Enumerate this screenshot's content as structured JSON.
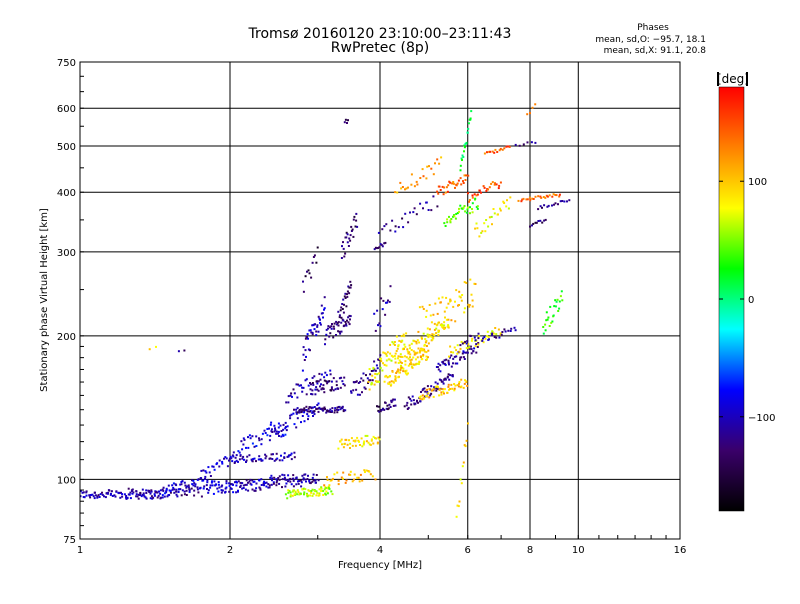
{
  "chart_data": {
    "type": "scatter",
    "title_line1": "Tromsø 20160120 23:10:00–23:11:43",
    "title_line2": "RwPretec (8p)",
    "xlabel": "Frequency [MHz]",
    "ylabel": "Stationary phase Virtual Height [km]",
    "x_scale": "log",
    "y_scale": "log",
    "xlim": [
      1,
      16
    ],
    "ylim": [
      75,
      750
    ],
    "x_ticks": [
      1,
      2,
      4,
      6,
      8,
      10,
      16
    ],
    "x_tick_labels": [
      "1",
      "2",
      "4",
      "6",
      "8",
      "10",
      "16"
    ],
    "y_ticks": [
      75,
      100,
      200,
      300,
      400,
      500,
      600,
      750
    ],
    "y_tick_labels": [
      "75",
      "100",
      "200",
      "300",
      "400",
      "500",
      "600",
      "750"
    ],
    "grid": true,
    "phases_info": {
      "heading": "Phases",
      "line1": "mean, sd,O: −95.7, 18.1",
      "line2": "mean, sd,X:  91.1, 20.8"
    },
    "colorbar": {
      "label": "[deg]",
      "range": [
        -180,
        180
      ],
      "ticks": [
        100,
        0,
        -100
      ],
      "tick_labels": [
        "100",
        "0",
        "−100"
      ],
      "colors": [
        "#000000",
        "#3a006a",
        "#0000ff",
        "#00ffff",
        "#00ff00",
        "#ffff00",
        "#ff8000",
        "#ff0000"
      ]
    },
    "series": [
      {
        "f": [
          1.0,
          1.45
        ],
        "h": [
          93,
          93
        ],
        "phase": -105,
        "count": 90,
        "jh": 2
      },
      {
        "f": [
          1.25,
          1.75
        ],
        "h": [
          94,
          94
        ],
        "phase": -115,
        "count": 40,
        "jh": 2
      },
      {
        "f": [
          1.45,
          1.8
        ],
        "h": [
          94,
          99
        ],
        "phase": -95,
        "count": 60,
        "jh": 3
      },
      {
        "f": [
          1.8,
          2.4
        ],
        "h": [
          96,
          98
        ],
        "phase": -100,
        "count": 90,
        "jh": 3
      },
      {
        "f": [
          2.4,
          3.0
        ],
        "h": [
          99,
          100
        ],
        "phase": -110,
        "count": 70,
        "jh": 3
      },
      {
        "f": [
          2.6,
          3.2
        ],
        "h": [
          93,
          95
        ],
        "phase": 65,
        "count": 70,
        "jh": 2
      },
      {
        "f": [
          3.1,
          3.9
        ],
        "h": [
          100,
          102
        ],
        "phase": 105,
        "count": 35,
        "jh": 3
      },
      {
        "f": [
          1.75,
          2.1
        ],
        "h": [
          102,
          113
        ],
        "phase": -95,
        "count": 30,
        "jh": 3
      },
      {
        "f": [
          2.0,
          2.7
        ],
        "h": [
          110,
          112
        ],
        "phase": -105,
        "count": 55,
        "jh": 2
      },
      {
        "f": [
          2.1,
          2.6
        ],
        "h": [
          118,
          128
        ],
        "phase": -90,
        "count": 40,
        "jh": 4
      },
      {
        "f": [
          2.4,
          3.0
        ],
        "h": [
          126,
          140
        ],
        "phase": -95,
        "count": 40,
        "jh": 5
      },
      {
        "f": [
          2.7,
          3.4
        ],
        "h": [
          140,
          140
        ],
        "phase": -120,
        "count": 70,
        "jh": 2
      },
      {
        "f": [
          2.6,
          3.2
        ],
        "h": [
          150,
          165
        ],
        "phase": -110,
        "count": 40,
        "jh": 6
      },
      {
        "f": [
          2.9,
          3.4
        ],
        "h": [
          155,
          160
        ],
        "phase": -125,
        "count": 40,
        "jh": 5
      },
      {
        "f": [
          2.8,
          3.1
        ],
        "h": [
          180,
          230
        ],
        "phase": -105,
        "count": 40,
        "jh": 12
      },
      {
        "f": [
          3.1,
          3.5
        ],
        "h": [
          200,
          215
        ],
        "phase": -120,
        "count": 40,
        "jh": 8
      },
      {
        "f": [
          3.3,
          3.5
        ],
        "h": [
          215,
          255
        ],
        "phase": -130,
        "count": 25,
        "jh": 10
      },
      {
        "f": [
          3.35,
          3.6
        ],
        "h": [
          300,
          350
        ],
        "phase": -130,
        "count": 25,
        "jh": 15
      },
      {
        "f": [
          2.8,
          3.0
        ],
        "h": [
          250,
          295
        ],
        "phase": -135,
        "count": 12,
        "jh": 12
      },
      {
        "f": [
          3.4,
          3.45
        ],
        "h": [
          555,
          570
        ],
        "phase": -130,
        "count": 4,
        "jh": 8
      },
      {
        "f": [
          3.3,
          4.0
        ],
        "h": [
          118,
          122
        ],
        "phase": 90,
        "count": 45,
        "jh": 3
      },
      {
        "f": [
          3.5,
          4.0
        ],
        "h": [
          150,
          175
        ],
        "phase": -120,
        "count": 35,
        "jh": 8
      },
      {
        "f": [
          3.9,
          4.1
        ],
        "h": [
          305,
          312
        ],
        "phase": -120,
        "count": 10,
        "jh": 3
      },
      {
        "f": [
          3.9,
          4.2
        ],
        "h": [
          210,
          250
        ],
        "phase": -110,
        "count": 15,
        "jh": 15
      },
      {
        "f": [
          3.95,
          4.3
        ],
        "h": [
          140,
          145
        ],
        "phase": -130,
        "count": 25,
        "jh": 3
      },
      {
        "f": [
          3.8,
          4.5
        ],
        "h": [
          160,
          200
        ],
        "phase": 80,
        "count": 60,
        "jh": 10
      },
      {
        "f": [
          4.1,
          5.0
        ],
        "h": [
          160,
          185
        ],
        "phase": 95,
        "count": 80,
        "jh": 6
      },
      {
        "f": [
          4.3,
          5.5
        ],
        "h": [
          175,
          215
        ],
        "phase": 90,
        "count": 90,
        "jh": 8
      },
      {
        "f": [
          4.5,
          5.6
        ],
        "h": [
          143,
          165
        ],
        "phase": -120,
        "count": 60,
        "jh": 4
      },
      {
        "f": [
          4.8,
          6.0
        ],
        "h": [
          150,
          160
        ],
        "phase": 100,
        "count": 55,
        "jh": 4
      },
      {
        "f": [
          5.2,
          6.3
        ],
        "h": [
          170,
          190
        ],
        "phase": -110,
        "count": 50,
        "jh": 5
      },
      {
        "f": [
          5.5,
          7.0
        ],
        "h": [
          185,
          205
        ],
        "phase": 85,
        "count": 40,
        "jh": 5
      },
      {
        "f": [
          4.8,
          6.2
        ],
        "h": [
          210,
          250
        ],
        "phase": 95,
        "count": 60,
        "jh": 20
      },
      {
        "f": [
          5.8,
          7.5
        ],
        "h": [
          195,
          205
        ],
        "phase": -115,
        "count": 30,
        "jh": 4
      },
      {
        "f": [
          4.0,
          5.2
        ],
        "h": [
          330,
          380
        ],
        "phase": -120,
        "count": 25,
        "jh": 15
      },
      {
        "f": [
          4.3,
          5.3
        ],
        "h": [
          400,
          460
        ],
        "phase": 120,
        "count": 25,
        "jh": 15
      },
      {
        "f": [
          5.2,
          6.0
        ],
        "h": [
          400,
          430
        ],
        "phase": 140,
        "count": 30,
        "jh": 10
      },
      {
        "f": [
          5.4,
          6.3
        ],
        "h": [
          350,
          380
        ],
        "phase": 40,
        "count": 35,
        "jh": 12
      },
      {
        "f": [
          5.8,
          6.1
        ],
        "h": [
          450,
          580
        ],
        "phase": 10,
        "count": 20,
        "jh": 15
      },
      {
        "f": [
          6.0,
          7.0
        ],
        "h": [
          390,
          420
        ],
        "phase": 150,
        "count": 25,
        "jh": 10
      },
      {
        "f": [
          6.2,
          7.3
        ],
        "h": [
          330,
          380
        ],
        "phase": 80,
        "count": 25,
        "jh": 15
      },
      {
        "f": [
          6.5,
          7.3
        ],
        "h": [
          480,
          500
        ],
        "phase": 145,
        "count": 15,
        "jh": 5
      },
      {
        "f": [
          7.6,
          9.2
        ],
        "h": [
          385,
          395
        ],
        "phase": 140,
        "count": 25,
        "jh": 3
      },
      {
        "f": [
          8.3,
          9.6
        ],
        "h": [
          370,
          385
        ],
        "phase": -120,
        "count": 15,
        "jh": 3
      },
      {
        "f": [
          8.0,
          8.6
        ],
        "h": [
          340,
          350
        ],
        "phase": -130,
        "count": 10,
        "jh": 3
      },
      {
        "f": [
          8.5,
          9.3
        ],
        "h": [
          210,
          240
        ],
        "phase": 30,
        "count": 25,
        "jh": 10
      },
      {
        "f": [
          7.5,
          8.2
        ],
        "h": [
          500,
          510
        ],
        "phase": -110,
        "count": 6,
        "jh": 3
      },
      {
        "f": [
          7.9,
          8.2
        ],
        "h": [
          580,
          610
        ],
        "phase": 150,
        "count": 4,
        "jh": 5
      },
      {
        "f": [
          5.7,
          6.0
        ],
        "h": [
          80,
          130
        ],
        "phase": 90,
        "count": 12,
        "jh": 5
      },
      {
        "f": [
          1.38,
          1.42
        ],
        "h": [
          188,
          189
        ],
        "phase": 90,
        "count": 2,
        "jh": 1
      },
      {
        "f": [
          1.58,
          1.62
        ],
        "h": [
          186,
          187
        ],
        "phase": -130,
        "count": 2,
        "jh": 1
      }
    ]
  }
}
